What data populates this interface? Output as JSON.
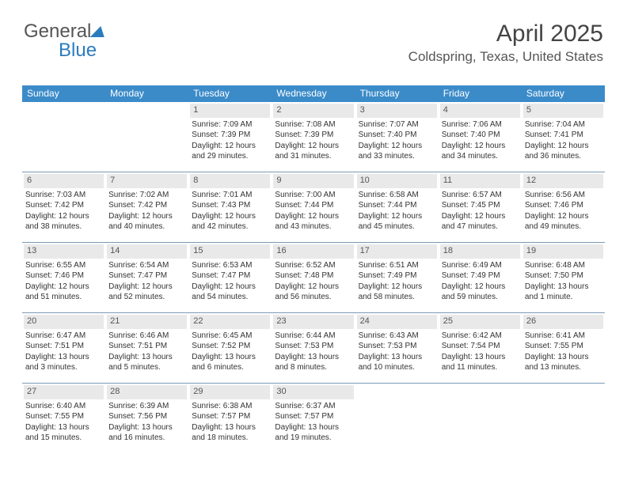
{
  "logo": {
    "part1": "General",
    "part2": "Blue"
  },
  "header": {
    "month": "April 2025",
    "location": "Coldspring, Texas, United States"
  },
  "colors": {
    "header_bg": "#3b8bc9",
    "header_text": "#ffffff",
    "daynum_bg": "#e9e9e9",
    "rule": "#7a99b5",
    "brand": "#2b7bbf"
  },
  "dayNames": [
    "Sunday",
    "Monday",
    "Tuesday",
    "Wednesday",
    "Thursday",
    "Friday",
    "Saturday"
  ],
  "weeks": [
    [
      {
        "n": "",
        "sr": "",
        "ss": "",
        "dl": ""
      },
      {
        "n": "",
        "sr": "",
        "ss": "",
        "dl": ""
      },
      {
        "n": "1",
        "sr": "Sunrise: 7:09 AM",
        "ss": "Sunset: 7:39 PM",
        "dl": "Daylight: 12 hours and 29 minutes."
      },
      {
        "n": "2",
        "sr": "Sunrise: 7:08 AM",
        "ss": "Sunset: 7:39 PM",
        "dl": "Daylight: 12 hours and 31 minutes."
      },
      {
        "n": "3",
        "sr": "Sunrise: 7:07 AM",
        "ss": "Sunset: 7:40 PM",
        "dl": "Daylight: 12 hours and 33 minutes."
      },
      {
        "n": "4",
        "sr": "Sunrise: 7:06 AM",
        "ss": "Sunset: 7:40 PM",
        "dl": "Daylight: 12 hours and 34 minutes."
      },
      {
        "n": "5",
        "sr": "Sunrise: 7:04 AM",
        "ss": "Sunset: 7:41 PM",
        "dl": "Daylight: 12 hours and 36 minutes."
      }
    ],
    [
      {
        "n": "6",
        "sr": "Sunrise: 7:03 AM",
        "ss": "Sunset: 7:42 PM",
        "dl": "Daylight: 12 hours and 38 minutes."
      },
      {
        "n": "7",
        "sr": "Sunrise: 7:02 AM",
        "ss": "Sunset: 7:42 PM",
        "dl": "Daylight: 12 hours and 40 minutes."
      },
      {
        "n": "8",
        "sr": "Sunrise: 7:01 AM",
        "ss": "Sunset: 7:43 PM",
        "dl": "Daylight: 12 hours and 42 minutes."
      },
      {
        "n": "9",
        "sr": "Sunrise: 7:00 AM",
        "ss": "Sunset: 7:44 PM",
        "dl": "Daylight: 12 hours and 43 minutes."
      },
      {
        "n": "10",
        "sr": "Sunrise: 6:58 AM",
        "ss": "Sunset: 7:44 PM",
        "dl": "Daylight: 12 hours and 45 minutes."
      },
      {
        "n": "11",
        "sr": "Sunrise: 6:57 AM",
        "ss": "Sunset: 7:45 PM",
        "dl": "Daylight: 12 hours and 47 minutes."
      },
      {
        "n": "12",
        "sr": "Sunrise: 6:56 AM",
        "ss": "Sunset: 7:46 PM",
        "dl": "Daylight: 12 hours and 49 minutes."
      }
    ],
    [
      {
        "n": "13",
        "sr": "Sunrise: 6:55 AM",
        "ss": "Sunset: 7:46 PM",
        "dl": "Daylight: 12 hours and 51 minutes."
      },
      {
        "n": "14",
        "sr": "Sunrise: 6:54 AM",
        "ss": "Sunset: 7:47 PM",
        "dl": "Daylight: 12 hours and 52 minutes."
      },
      {
        "n": "15",
        "sr": "Sunrise: 6:53 AM",
        "ss": "Sunset: 7:47 PM",
        "dl": "Daylight: 12 hours and 54 minutes."
      },
      {
        "n": "16",
        "sr": "Sunrise: 6:52 AM",
        "ss": "Sunset: 7:48 PM",
        "dl": "Daylight: 12 hours and 56 minutes."
      },
      {
        "n": "17",
        "sr": "Sunrise: 6:51 AM",
        "ss": "Sunset: 7:49 PM",
        "dl": "Daylight: 12 hours and 58 minutes."
      },
      {
        "n": "18",
        "sr": "Sunrise: 6:49 AM",
        "ss": "Sunset: 7:49 PM",
        "dl": "Daylight: 12 hours and 59 minutes."
      },
      {
        "n": "19",
        "sr": "Sunrise: 6:48 AM",
        "ss": "Sunset: 7:50 PM",
        "dl": "Daylight: 13 hours and 1 minute."
      }
    ],
    [
      {
        "n": "20",
        "sr": "Sunrise: 6:47 AM",
        "ss": "Sunset: 7:51 PM",
        "dl": "Daylight: 13 hours and 3 minutes."
      },
      {
        "n": "21",
        "sr": "Sunrise: 6:46 AM",
        "ss": "Sunset: 7:51 PM",
        "dl": "Daylight: 13 hours and 5 minutes."
      },
      {
        "n": "22",
        "sr": "Sunrise: 6:45 AM",
        "ss": "Sunset: 7:52 PM",
        "dl": "Daylight: 13 hours and 6 minutes."
      },
      {
        "n": "23",
        "sr": "Sunrise: 6:44 AM",
        "ss": "Sunset: 7:53 PM",
        "dl": "Daylight: 13 hours and 8 minutes."
      },
      {
        "n": "24",
        "sr": "Sunrise: 6:43 AM",
        "ss": "Sunset: 7:53 PM",
        "dl": "Daylight: 13 hours and 10 minutes."
      },
      {
        "n": "25",
        "sr": "Sunrise: 6:42 AM",
        "ss": "Sunset: 7:54 PM",
        "dl": "Daylight: 13 hours and 11 minutes."
      },
      {
        "n": "26",
        "sr": "Sunrise: 6:41 AM",
        "ss": "Sunset: 7:55 PM",
        "dl": "Daylight: 13 hours and 13 minutes."
      }
    ],
    [
      {
        "n": "27",
        "sr": "Sunrise: 6:40 AM",
        "ss": "Sunset: 7:55 PM",
        "dl": "Daylight: 13 hours and 15 minutes."
      },
      {
        "n": "28",
        "sr": "Sunrise: 6:39 AM",
        "ss": "Sunset: 7:56 PM",
        "dl": "Daylight: 13 hours and 16 minutes."
      },
      {
        "n": "29",
        "sr": "Sunrise: 6:38 AM",
        "ss": "Sunset: 7:57 PM",
        "dl": "Daylight: 13 hours and 18 minutes."
      },
      {
        "n": "30",
        "sr": "Sunrise: 6:37 AM",
        "ss": "Sunset: 7:57 PM",
        "dl": "Daylight: 13 hours and 19 minutes."
      },
      {
        "n": "",
        "sr": "",
        "ss": "",
        "dl": ""
      },
      {
        "n": "",
        "sr": "",
        "ss": "",
        "dl": ""
      },
      {
        "n": "",
        "sr": "",
        "ss": "",
        "dl": ""
      }
    ]
  ]
}
